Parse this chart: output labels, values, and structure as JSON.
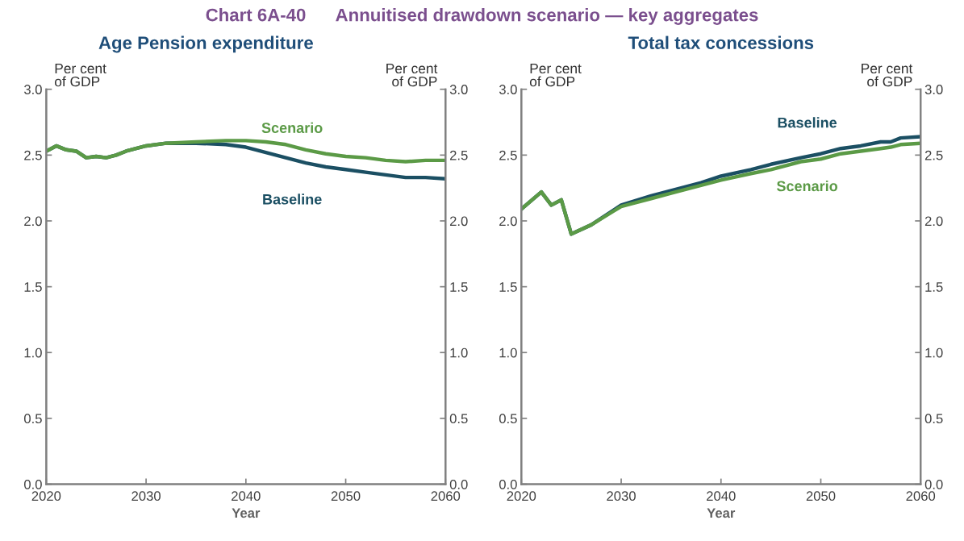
{
  "chart_data": [
    {
      "type": "line",
      "title": "Age Pension expenditure",
      "xlabel": "Year",
      "ylabel": "Per cent\nof GDP",
      "y2label": "Per cent\nof GDP",
      "annotations": [
        "Chart 6A-40      Annuitised drawdown scenario — key aggregates"
      ],
      "xlim": [
        2020,
        2060
      ],
      "xticks": [
        2020,
        2030,
        2040,
        2050,
        2060
      ],
      "ylim": [
        0,
        3
      ],
      "yticks": [
        {
          "value": 0,
          "label": "0.0"
        },
        {
          "value": 0.5,
          "label": "0.5"
        },
        {
          "value": 1,
          "label": "1.0"
        },
        {
          "value": 1.5,
          "label": "1.5"
        },
        {
          "value": 2,
          "label": "2.0"
        },
        {
          "value": 2.5,
          "label": "2.5"
        },
        {
          "value": 3,
          "label": "3.0"
        }
      ],
      "y2lim": [
        0,
        3
      ],
      "y2ticks": [
        {
          "value": 0,
          "label": "0.0"
        },
        {
          "value": 0.5,
          "label": "0.5"
        },
        {
          "value": 1,
          "label": "1.0"
        },
        {
          "value": 1.5,
          "label": "1.5"
        },
        {
          "value": 2,
          "label": "2.0"
        },
        {
          "value": 2.5,
          "label": "2.5"
        },
        {
          "value": 3,
          "label": "3.0"
        }
      ],
      "grid": false,
      "legend": false,
      "series": [
        {
          "name": "Baseline",
          "color": "#1b4f63",
          "x": [
            2020,
            2021,
            2022,
            2023,
            2024,
            2025,
            2026,
            2027,
            2028,
            2030,
            2032,
            2035,
            2038,
            2040,
            2042,
            2044,
            2046,
            2048,
            2050,
            2052,
            2054,
            2056,
            2058,
            2060
          ],
          "values": [
            2.53,
            2.57,
            2.54,
            2.53,
            2.48,
            2.49,
            2.48,
            2.5,
            2.53,
            2.57,
            2.59,
            2.59,
            2.58,
            2.56,
            2.52,
            2.48,
            2.44,
            2.41,
            2.39,
            2.37,
            2.35,
            2.33,
            2.33,
            2.32
          ]
        },
        {
          "name": "Scenario",
          "color": "#5b9a46",
          "x": [
            2020,
            2021,
            2022,
            2023,
            2024,
            2025,
            2026,
            2027,
            2028,
            2030,
            2032,
            2035,
            2038,
            2040,
            2042,
            2044,
            2046,
            2048,
            2050,
            2052,
            2054,
            2056,
            2058,
            2060
          ],
          "values": [
            2.53,
            2.57,
            2.54,
            2.53,
            2.48,
            2.49,
            2.48,
            2.5,
            2.53,
            2.57,
            2.59,
            2.6,
            2.61,
            2.61,
            2.6,
            2.58,
            2.54,
            2.51,
            2.49,
            2.48,
            2.46,
            2.45,
            2.46,
            2.46
          ]
        }
      ]
    },
    {
      "type": "line",
      "title": "Total tax concessions",
      "xlabel": "Year",
      "ylabel": "Per cent\nof GDP",
      "y2label": "Per cent\nof GDP",
      "xlim": [
        2020,
        2060
      ],
      "xticks": [
        2020,
        2030,
        2040,
        2050,
        2060
      ],
      "ylim": [
        0,
        3
      ],
      "yticks": [
        {
          "value": 0,
          "label": "0.0"
        },
        {
          "value": 0.5,
          "label": "0.5"
        },
        {
          "value": 1,
          "label": "1.0"
        },
        {
          "value": 1.5,
          "label": "1.5"
        },
        {
          "value": 2,
          "label": "2.0"
        },
        {
          "value": 2.5,
          "label": "2.5"
        },
        {
          "value": 3,
          "label": "3.0"
        }
      ],
      "y2lim": [
        0,
        3
      ],
      "y2ticks": [
        {
          "value": 0,
          "label": "0.0"
        },
        {
          "value": 0.5,
          "label": "0.5"
        },
        {
          "value": 1,
          "label": "1.0"
        },
        {
          "value": 1.5,
          "label": "1.5"
        },
        {
          "value": 2,
          "label": "2.0"
        },
        {
          "value": 2.5,
          "label": "2.5"
        },
        {
          "value": 3,
          "label": "3.0"
        }
      ],
      "grid": false,
      "legend": false,
      "series": [
        {
          "name": "Baseline",
          "color": "#1b4f63",
          "x": [
            2020,
            2022,
            2023,
            2024,
            2025,
            2027,
            2030,
            2033,
            2035,
            2038,
            2040,
            2043,
            2045,
            2048,
            2050,
            2052,
            2054,
            2056,
            2057,
            2058,
            2060
          ],
          "values": [
            2.09,
            2.22,
            2.12,
            2.16,
            1.9,
            1.97,
            2.12,
            2.19,
            2.23,
            2.29,
            2.34,
            2.39,
            2.43,
            2.48,
            2.51,
            2.55,
            2.57,
            2.6,
            2.6,
            2.63,
            2.64
          ]
        },
        {
          "name": "Scenario",
          "color": "#5b9a46",
          "x": [
            2020,
            2022,
            2023,
            2024,
            2025,
            2027,
            2030,
            2033,
            2035,
            2038,
            2040,
            2043,
            2045,
            2048,
            2050,
            2052,
            2054,
            2056,
            2057,
            2058,
            2060
          ],
          "values": [
            2.09,
            2.22,
            2.12,
            2.16,
            1.9,
            1.97,
            2.11,
            2.17,
            2.21,
            2.27,
            2.31,
            2.36,
            2.39,
            2.45,
            2.47,
            2.51,
            2.53,
            2.55,
            2.56,
            2.58,
            2.59
          ]
        }
      ]
    }
  ]
}
